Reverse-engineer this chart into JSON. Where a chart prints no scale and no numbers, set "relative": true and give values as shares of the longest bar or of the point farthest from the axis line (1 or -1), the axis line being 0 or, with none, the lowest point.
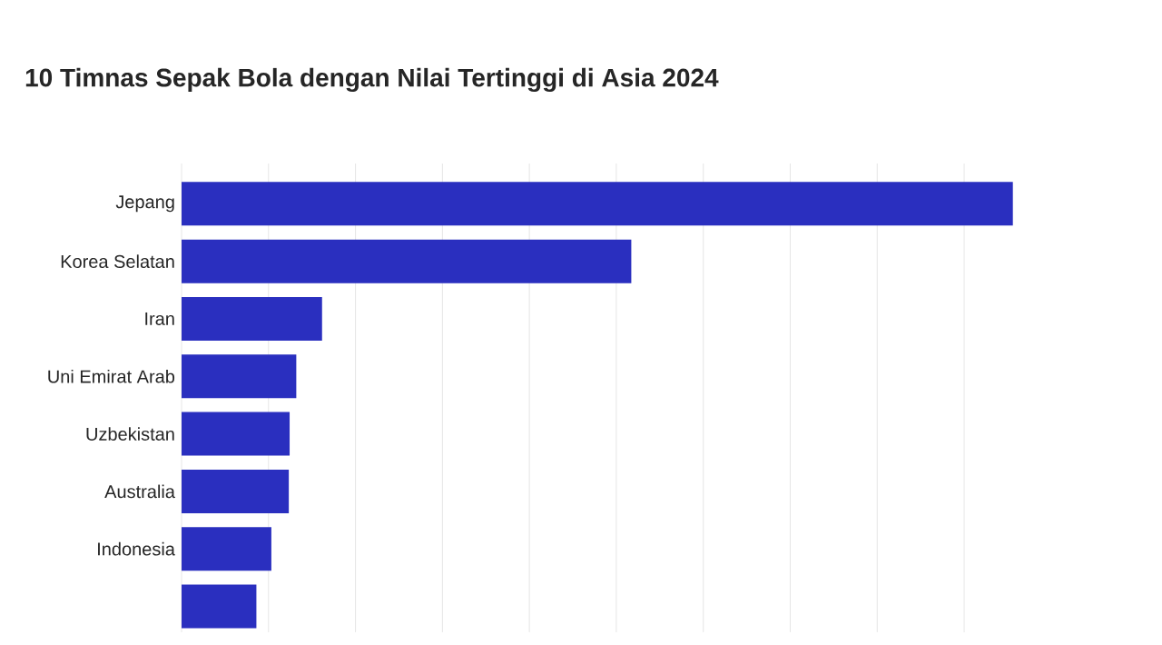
{
  "chart_data": {
    "type": "bar",
    "orientation": "horizontal",
    "relative": true,
    "title": "10 Timnas Sepak Bola dengan Nilai Tertinggi di Asia 2024",
    "categories": [
      "Jepang",
      "Korea Selatan",
      "Iran",
      "Uni Emirat Arab",
      "Uzbekistan",
      "Australia",
      "Indonesia",
      null
    ],
    "values": [
      1,
      0.541,
      0.169,
      0.138,
      0.13,
      0.129,
      0.108,
      0.09
    ],
    "color": "#2a2fbf",
    "grid": "x"
  }
}
